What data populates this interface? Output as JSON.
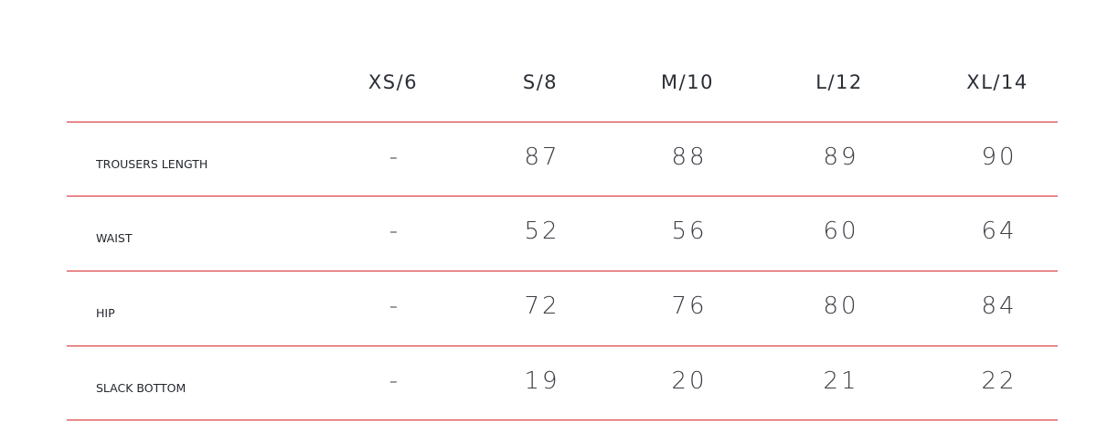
{
  "table": {
    "columns": [
      "XS/6",
      "S/8",
      "M/10",
      "L/12",
      "XL/14"
    ],
    "rows": [
      {
        "label": "TROUSERS LENGTH",
        "values": [
          "-",
          "87",
          "88",
          "89",
          "90"
        ]
      },
      {
        "label": "WAIST",
        "values": [
          "-",
          "52",
          "56",
          "60",
          "64"
        ]
      },
      {
        "label": "HIP",
        "values": [
          "-",
          "72",
          "76",
          "80",
          "84"
        ]
      },
      {
        "label": "SLACK BOTTOM",
        "values": [
          "-",
          "19",
          "20",
          "21",
          "22"
        ]
      }
    ],
    "divider_color": "#d62a2f"
  }
}
